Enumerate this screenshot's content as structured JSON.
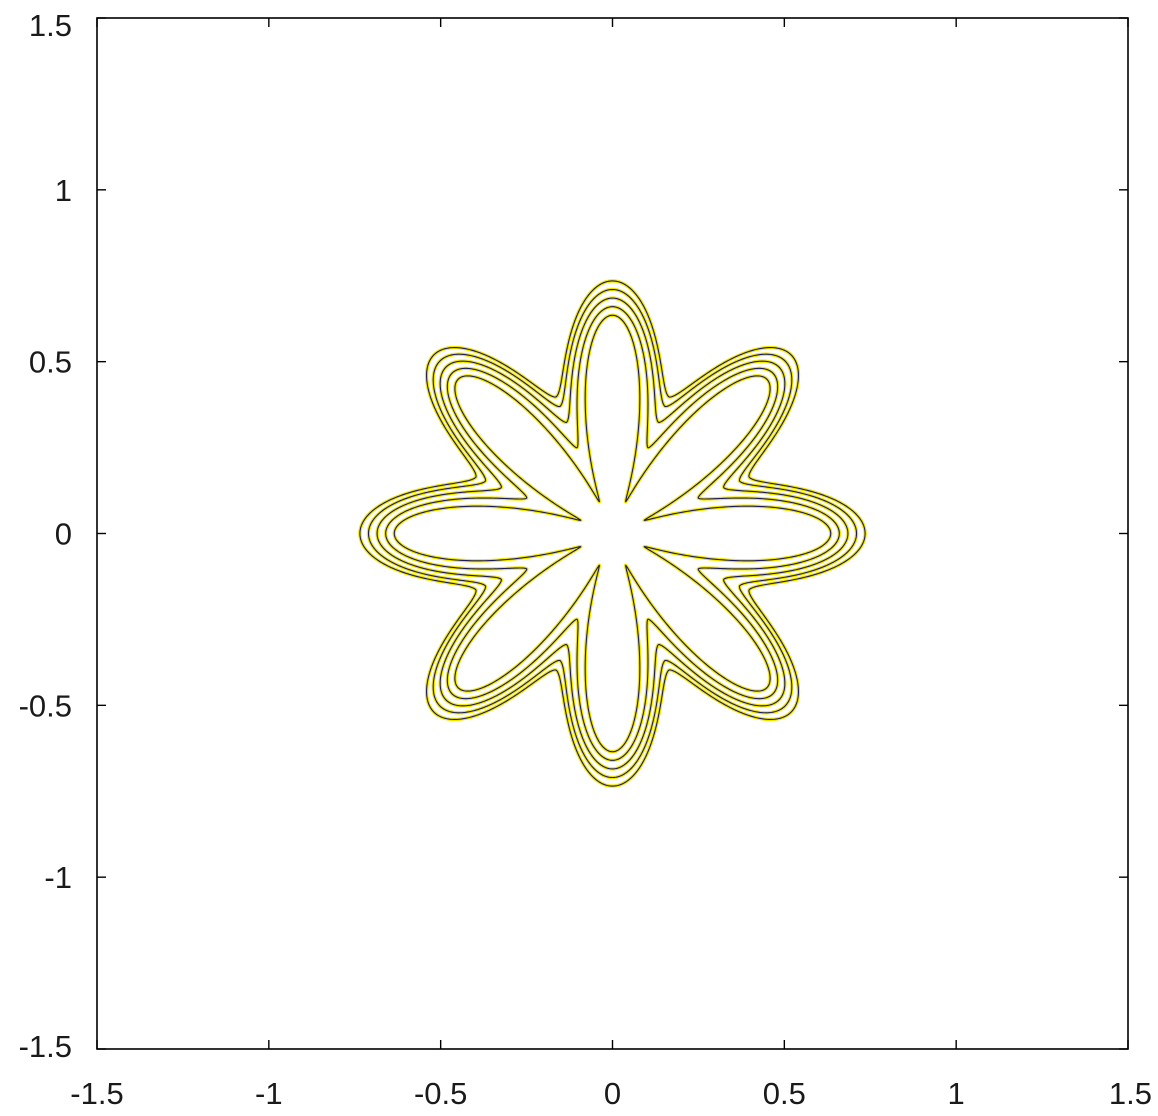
{
  "chart_data": {
    "type": "line",
    "subtype": "contour",
    "title": "",
    "xlabel": "",
    "ylabel": "",
    "xlim": [
      -1.5,
      1.5
    ],
    "ylim": [
      -1.5,
      1.5
    ],
    "grid": false,
    "legend": "none",
    "x_ticks": [
      -1.5,
      -1,
      -0.5,
      0,
      0.5,
      1,
      1.5
    ],
    "y_ticks": [
      -1.5,
      -1,
      -0.5,
      0,
      0.5,
      1,
      1.5
    ],
    "x_tick_labels": [
      "-1.5",
      "-1",
      "-0.5",
      "0",
      "0.5",
      "1",
      "1.5"
    ],
    "y_tick_labels": [
      "-1.5",
      "-1",
      "-0.5",
      "0",
      "0.5",
      "1",
      "1.5"
    ],
    "colors": {
      "contour_outer": "#f2e600",
      "contour_inner": "#1a1a5e",
      "axis": "#000000"
    },
    "series": [
      {
        "shape": "eight-petal",
        "petals": 8,
        "center": [
          0,
          0
        ],
        "inner_radius": 0.1,
        "petal_radius": 0.635
      },
      {
        "shape": "eight-petal",
        "petals": 8,
        "center": [
          0,
          0
        ],
        "inner_radius": 0.27,
        "petal_radius": 0.66
      },
      {
        "shape": "eight-petal",
        "petals": 8,
        "center": [
          0,
          0
        ],
        "inner_radius": 0.35,
        "petal_radius": 0.685
      },
      {
        "shape": "eight-petal",
        "petals": 8,
        "center": [
          0,
          0
        ],
        "inner_radius": 0.4,
        "petal_radius": 0.71
      },
      {
        "shape": "eight-petal",
        "petals": 8,
        "center": [
          0,
          0
        ],
        "inner_radius": 0.43,
        "petal_radius": 0.735
      }
    ]
  }
}
